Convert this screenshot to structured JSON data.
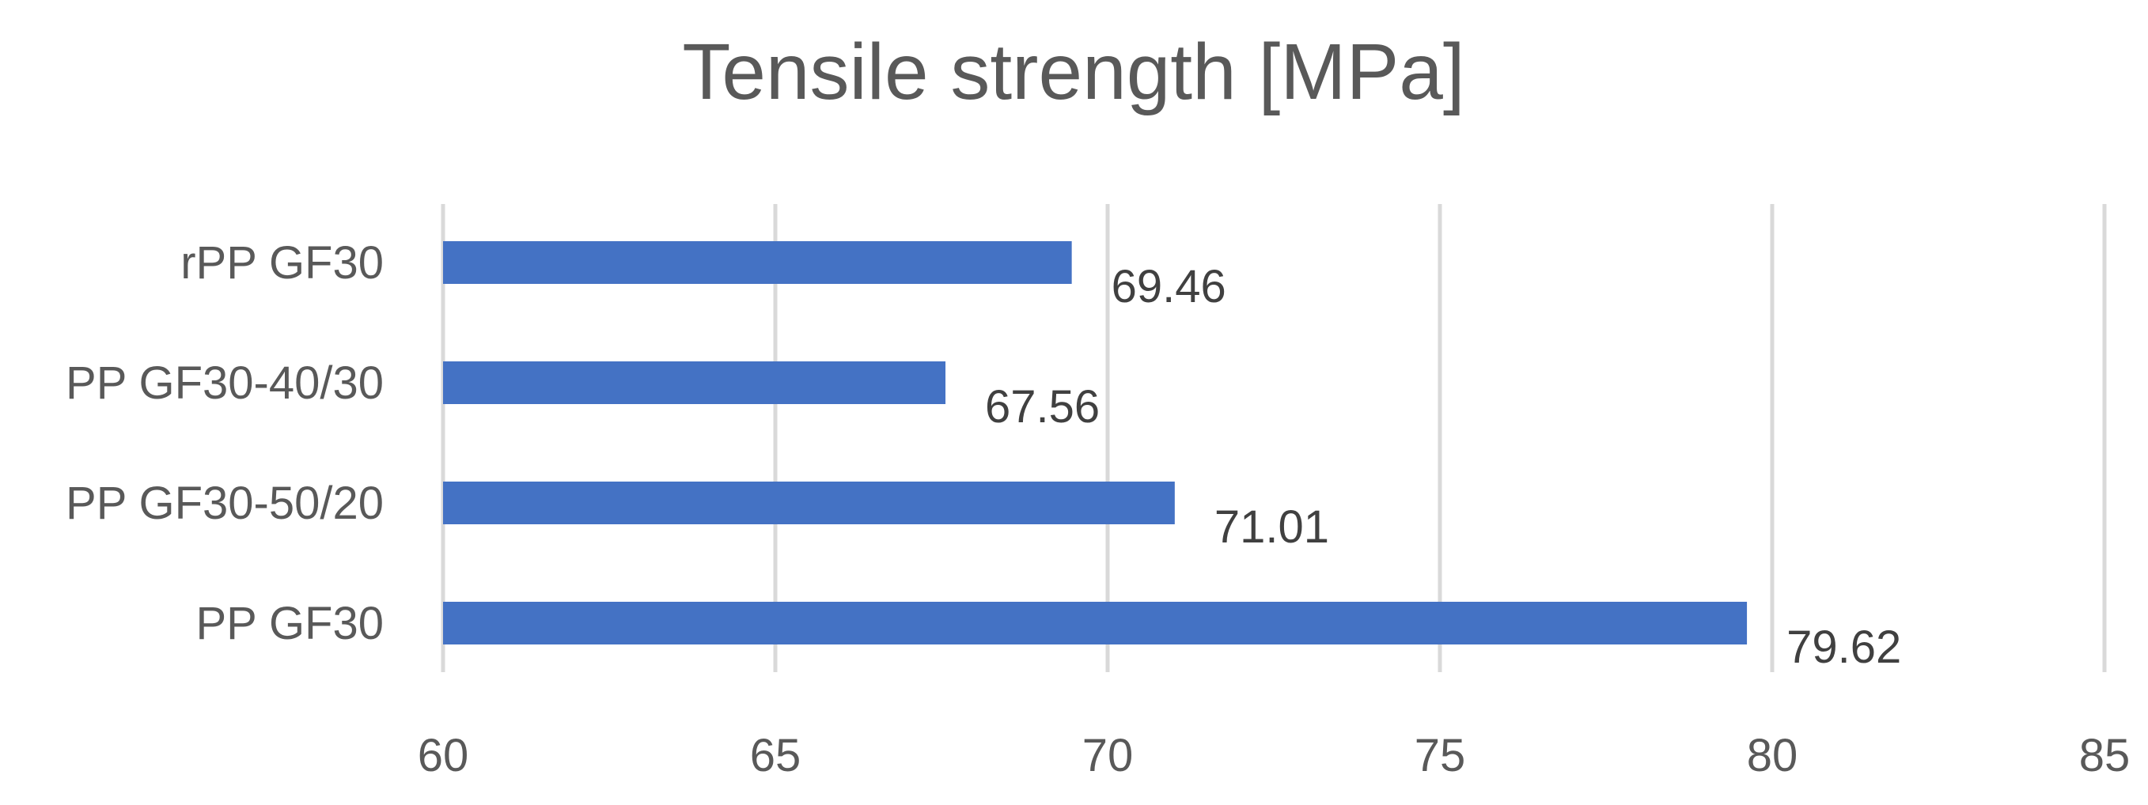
{
  "chart_data": {
    "type": "bar",
    "orientation": "horizontal",
    "title": "Tensile strength [MPa]",
    "xlabel": "",
    "ylabel": "",
    "categories": [
      "rPP GF30",
      "PP GF30-40/30",
      "PP GF30-50/20",
      "PP GF30"
    ],
    "series": [
      {
        "values": [
          69.46,
          67.56,
          71.01,
          79.62
        ],
        "color": "#4472c4"
      }
    ],
    "data_labels": [
      "69.46",
      "67.56",
      "71.01",
      "79.62"
    ],
    "xlim": [
      60,
      85
    ],
    "xticks": [
      60,
      65,
      70,
      75,
      80,
      85
    ],
    "xtick_labels": [
      "60",
      "65",
      "70",
      "75",
      "80",
      "85"
    ],
    "grid": "vertical",
    "legend": "none"
  }
}
